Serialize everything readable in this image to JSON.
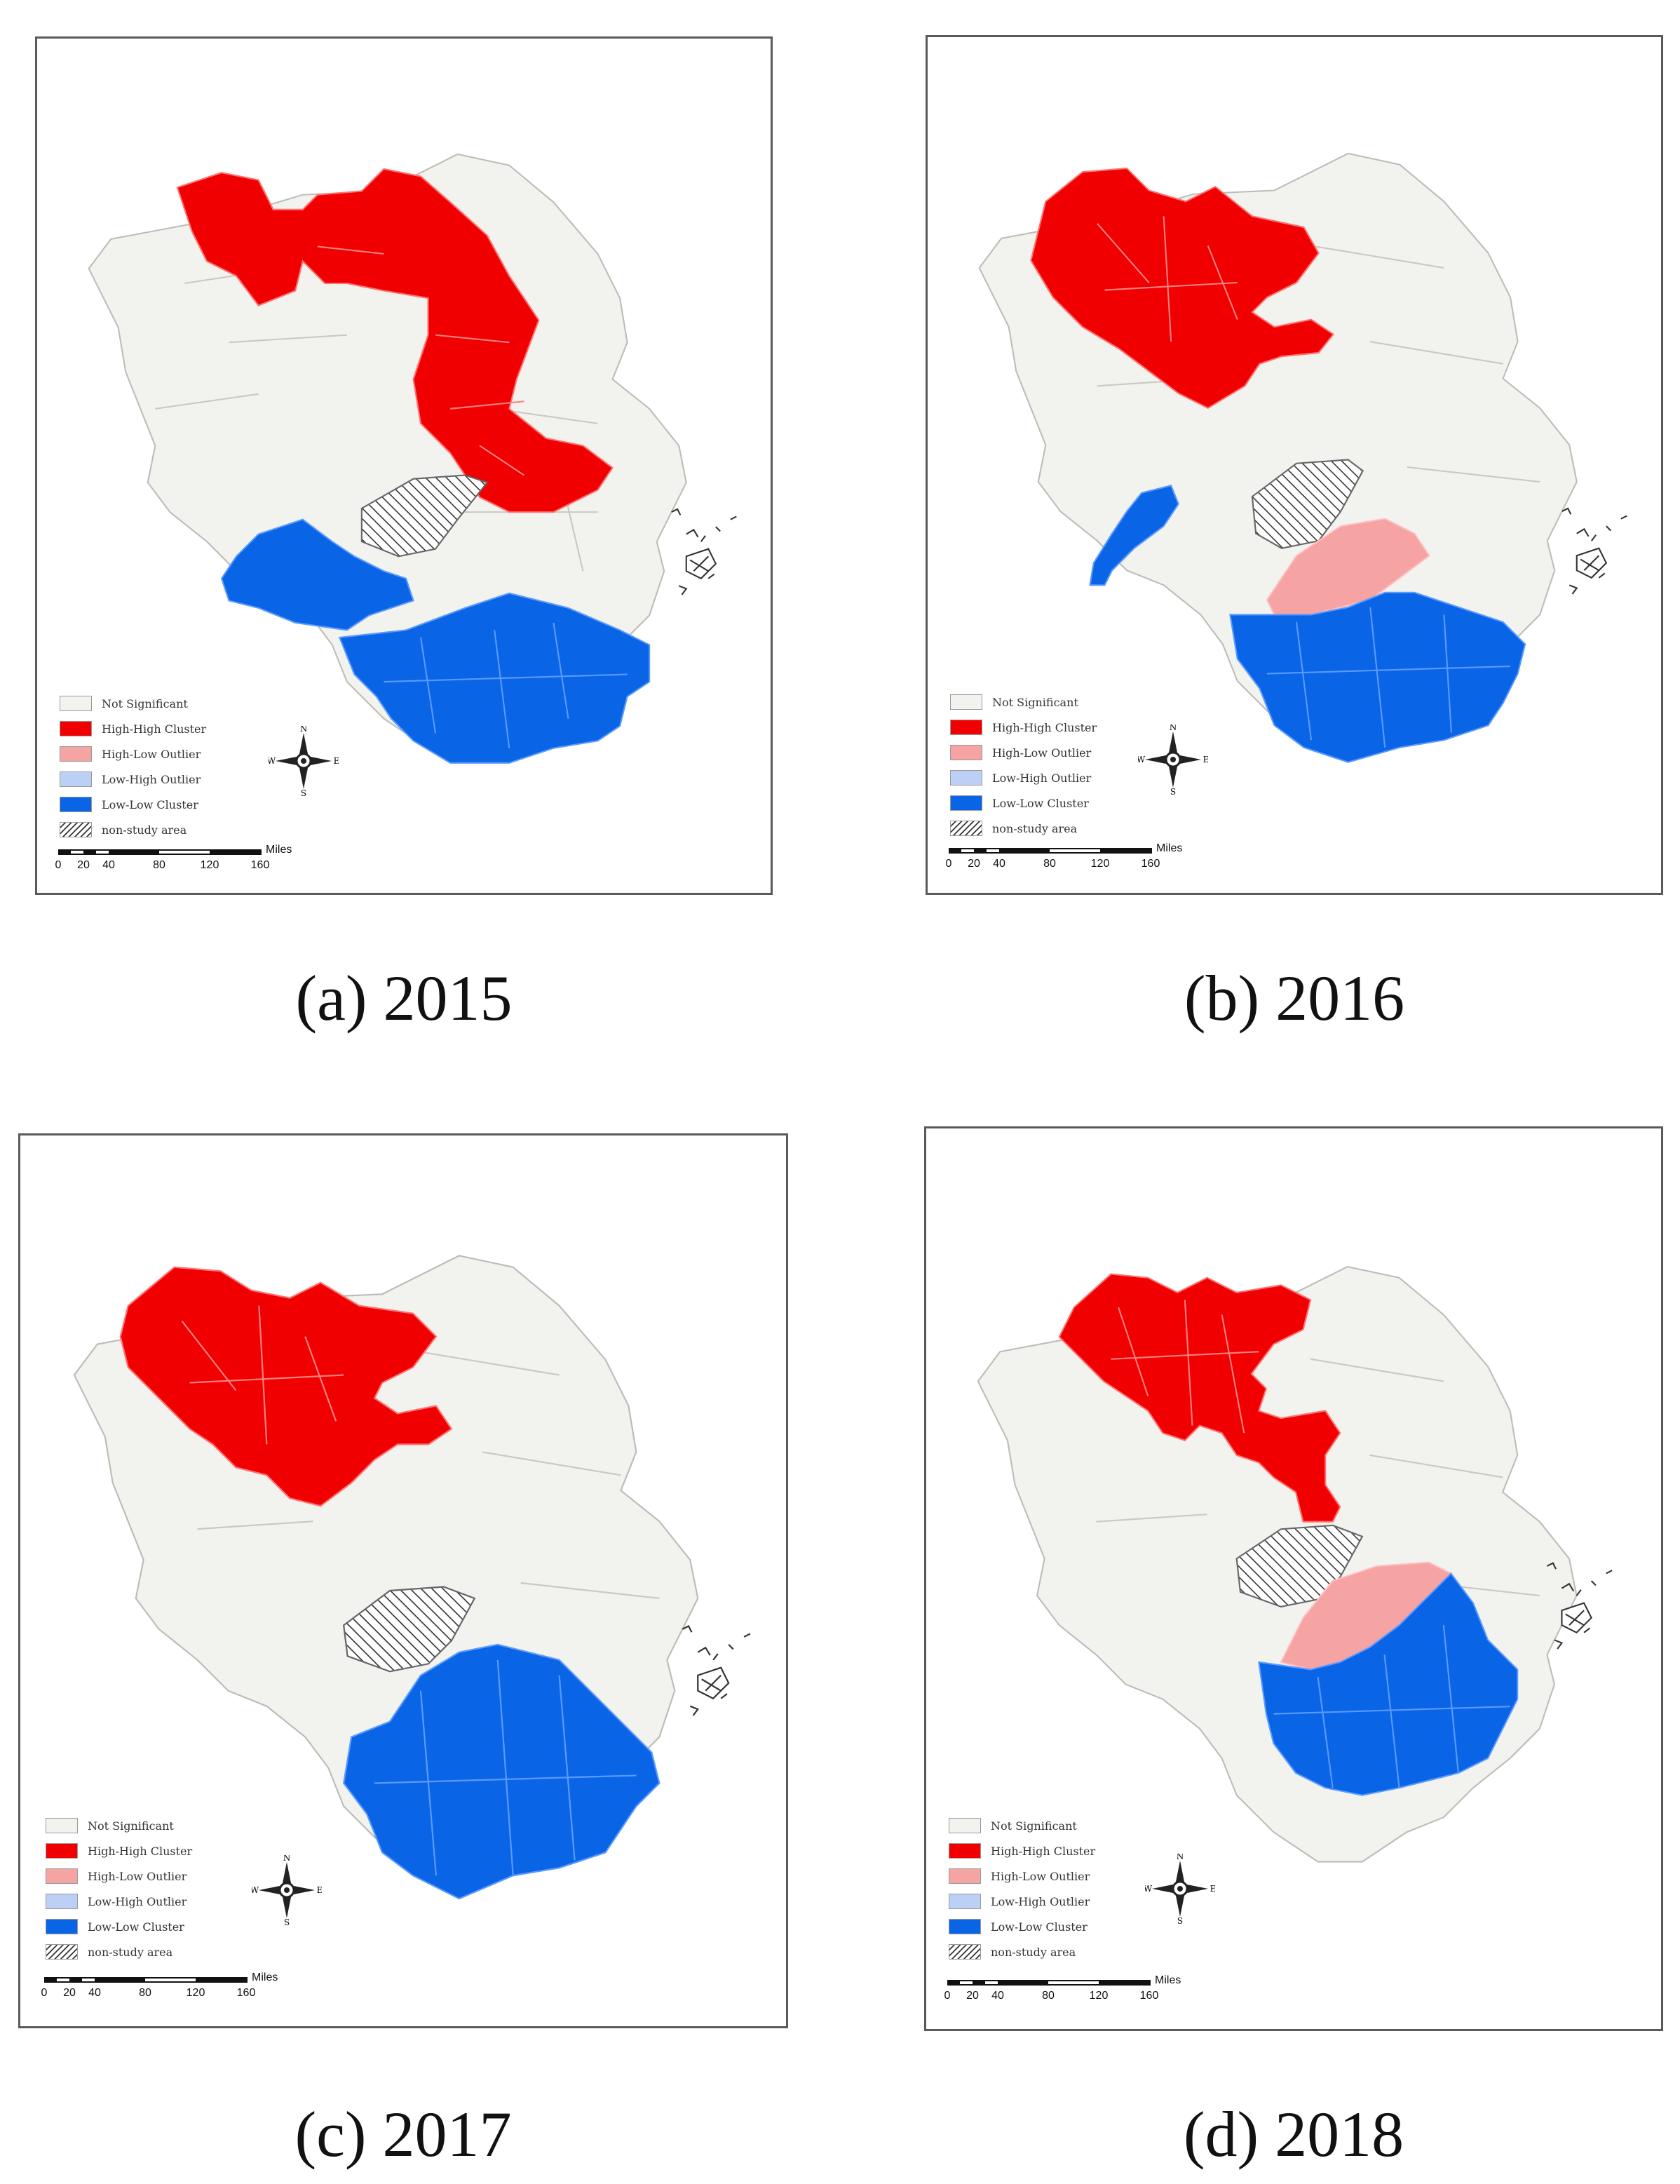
{
  "legend": {
    "items": [
      {
        "label": "Not Significant",
        "color": "#f2f2ef"
      },
      {
        "label": "High-High Cluster",
        "color": "#f00000"
      },
      {
        "label": "High-Low Outlier",
        "color": "#f5a3a3"
      },
      {
        "label": "Low-High Outlier",
        "color": "#bcd0f5"
      },
      {
        "label": "Low-Low Cluster",
        "color": "#0a64e6"
      },
      {
        "label": "non-study area",
        "color": "hatch"
      }
    ]
  },
  "scale": {
    "unit": "Miles",
    "ticks": [
      "0",
      "20",
      "40",
      "80",
      "120",
      "160"
    ]
  },
  "compass": {
    "n": "N",
    "s": "S",
    "e": "E",
    "w": "W"
  },
  "panels": [
    {
      "id": "a",
      "caption": "(a) 2015",
      "clusters": {
        "high_high": "north-central and east",
        "high_low": "none",
        "low_low": "south and southwest"
      }
    },
    {
      "id": "b",
      "caption": "(b) 2016",
      "clusters": {
        "high_high": "northwest",
        "high_low": "central",
        "low_low": "south and west"
      }
    },
    {
      "id": "c",
      "caption": "(c) 2017",
      "clusters": {
        "high_high": "northwest",
        "high_low": "none",
        "low_low": "south"
      }
    },
    {
      "id": "d",
      "caption": "(d) 2018",
      "clusters": {
        "high_high": "northwest",
        "high_low": "central",
        "low_low": "south"
      }
    }
  ],
  "colors": {
    "not_significant": "#f2f2ef",
    "high_high": "#f00000",
    "high_low": "#f5a3a3",
    "low_low": "#0a64e6",
    "border": "#c9c9c4"
  }
}
